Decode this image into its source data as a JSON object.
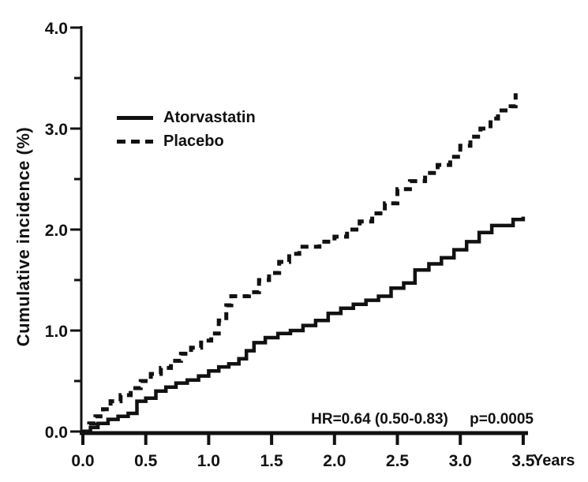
{
  "page": {
    "background": "#ffffff",
    "ink": "#111111"
  },
  "chart_data": {
    "type": "line",
    "subtype": "step-cumulative-incidence",
    "title": "",
    "xlabel": "Years",
    "ylabel": "Cumulative incidence (%)",
    "xlim": [
      0,
      3.5
    ],
    "ylim": [
      0,
      4.0
    ],
    "grid": false,
    "legend_position": "upper-left-inside",
    "x_ticks": [
      {
        "value": 0.0,
        "label": "0.0"
      },
      {
        "value": 0.5,
        "label": "0.5"
      },
      {
        "value": 1.0,
        "label": "1.0"
      },
      {
        "value": 1.5,
        "label": "1.5"
      },
      {
        "value": 2.0,
        "label": "2.0"
      },
      {
        "value": 2.5,
        "label": "2.5"
      },
      {
        "value": 3.0,
        "label": "3.0"
      },
      {
        "value": 3.5,
        "label": "3.5"
      }
    ],
    "y_ticks": [
      {
        "value": 0.0,
        "label": "0.0"
      },
      {
        "value": 1.0,
        "label": "1.0"
      },
      {
        "value": 2.0,
        "label": "2.0"
      },
      {
        "value": 3.0,
        "label": "3.0"
      },
      {
        "value": 4.0,
        "label": "4.0"
      }
    ],
    "y_minor_ticks": [
      0.5,
      1.5,
      2.5,
      3.5
    ],
    "annotation": {
      "hr": "HR=0.64 (0.50-0.83)",
      "p": "p=0.0005"
    },
    "series": [
      {
        "name": "Atorvastatin",
        "style": "solid",
        "color": "#111111",
        "points": [
          [
            0.0,
            0.0
          ],
          [
            0.06,
            0.04
          ],
          [
            0.12,
            0.08
          ],
          [
            0.2,
            0.12
          ],
          [
            0.28,
            0.15
          ],
          [
            0.36,
            0.18
          ],
          [
            0.43,
            0.3
          ],
          [
            0.5,
            0.33
          ],
          [
            0.58,
            0.4
          ],
          [
            0.66,
            0.44
          ],
          [
            0.74,
            0.48
          ],
          [
            0.83,
            0.51
          ],
          [
            0.92,
            0.55
          ],
          [
            1.0,
            0.6
          ],
          [
            1.08,
            0.64
          ],
          [
            1.16,
            0.67
          ],
          [
            1.24,
            0.72
          ],
          [
            1.3,
            0.8
          ],
          [
            1.36,
            0.88
          ],
          [
            1.45,
            0.93
          ],
          [
            1.55,
            0.97
          ],
          [
            1.65,
            1.0
          ],
          [
            1.75,
            1.05
          ],
          [
            1.85,
            1.1
          ],
          [
            1.95,
            1.17
          ],
          [
            2.05,
            1.22
          ],
          [
            2.15,
            1.26
          ],
          [
            2.25,
            1.3
          ],
          [
            2.35,
            1.34
          ],
          [
            2.45,
            1.42
          ],
          [
            2.55,
            1.47
          ],
          [
            2.64,
            1.6
          ],
          [
            2.75,
            1.66
          ],
          [
            2.85,
            1.72
          ],
          [
            2.95,
            1.8
          ],
          [
            3.05,
            1.88
          ],
          [
            3.15,
            1.97
          ],
          [
            3.25,
            2.04
          ],
          [
            3.42,
            2.1
          ],
          [
            3.5,
            2.11
          ]
        ]
      },
      {
        "name": "Placebo",
        "style": "dashed",
        "color": "#111111",
        "points": [
          [
            0.0,
            0.0
          ],
          [
            0.05,
            0.08
          ],
          [
            0.1,
            0.15
          ],
          [
            0.16,
            0.22
          ],
          [
            0.22,
            0.3
          ],
          [
            0.3,
            0.36
          ],
          [
            0.38,
            0.43
          ],
          [
            0.46,
            0.5
          ],
          [
            0.54,
            0.57
          ],
          [
            0.62,
            0.63
          ],
          [
            0.7,
            0.7
          ],
          [
            0.78,
            0.77
          ],
          [
            0.86,
            0.83
          ],
          [
            0.94,
            0.9
          ],
          [
            1.02,
            0.97
          ],
          [
            1.08,
            1.1
          ],
          [
            1.14,
            1.25
          ],
          [
            1.18,
            1.34
          ],
          [
            1.32,
            1.38
          ],
          [
            1.4,
            1.5
          ],
          [
            1.48,
            1.57
          ],
          [
            1.56,
            1.68
          ],
          [
            1.64,
            1.76
          ],
          [
            1.72,
            1.83
          ],
          [
            1.88,
            1.88
          ],
          [
            2.0,
            1.93
          ],
          [
            2.1,
            2.0
          ],
          [
            2.2,
            2.08
          ],
          [
            2.3,
            2.16
          ],
          [
            2.4,
            2.26
          ],
          [
            2.5,
            2.4
          ],
          [
            2.6,
            2.48
          ],
          [
            2.72,
            2.56
          ],
          [
            2.82,
            2.64
          ],
          [
            2.92,
            2.72
          ],
          [
            3.0,
            2.83
          ],
          [
            3.08,
            2.92
          ],
          [
            3.16,
            3.0
          ],
          [
            3.24,
            3.1
          ],
          [
            3.3,
            3.18
          ],
          [
            3.4,
            3.22
          ],
          [
            3.44,
            3.35
          ]
        ]
      }
    ]
  }
}
